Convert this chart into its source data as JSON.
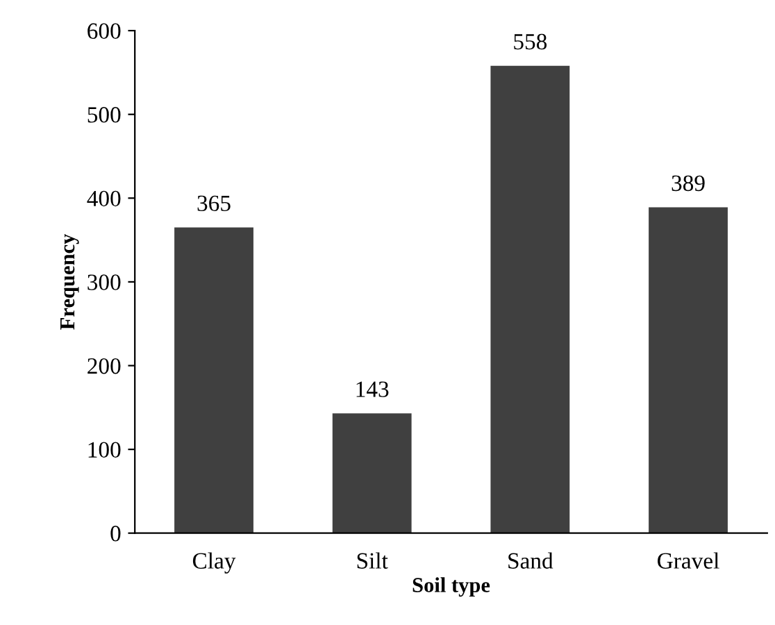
{
  "chart_data": {
    "type": "bar",
    "xlabel": "Soil type",
    "ylabel": "Frequency",
    "categories": [
      "Clay",
      "Silt",
      "Sand",
      "Gravel"
    ],
    "values": [
      365,
      143,
      558,
      389
    ],
    "color": "#404040",
    "ylim": [
      0,
      600
    ],
    "yticks": [
      0,
      100,
      200,
      300,
      400,
      500,
      600
    ],
    "data_labels": true,
    "grid": false,
    "legend": false
  }
}
